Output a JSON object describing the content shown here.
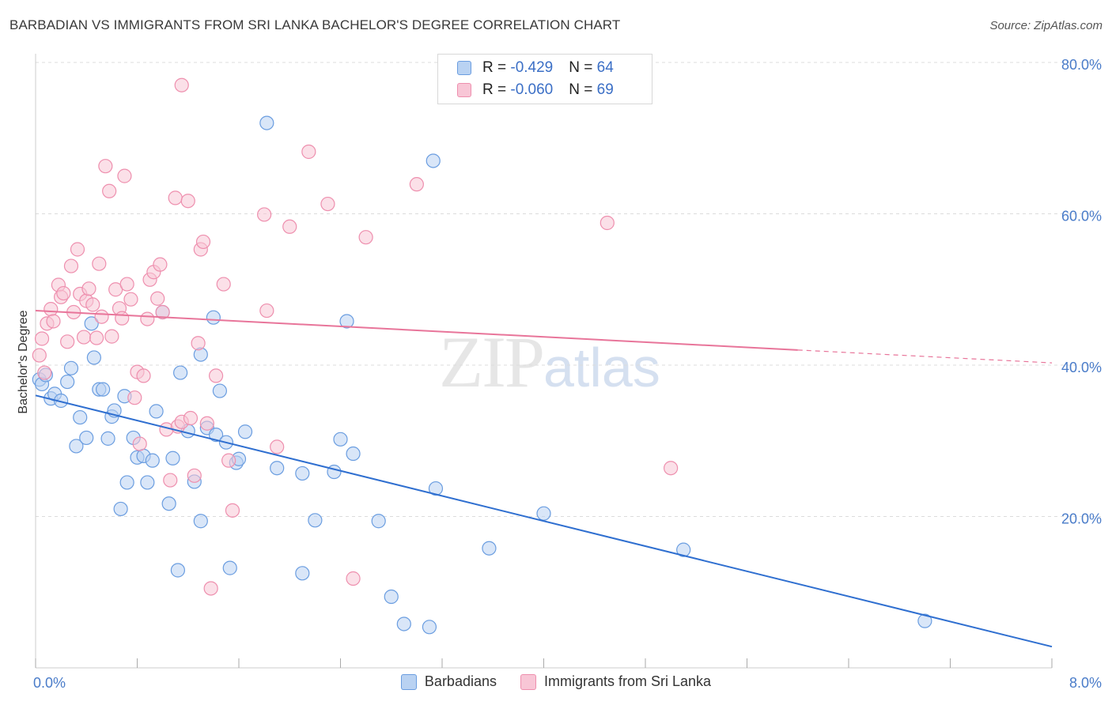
{
  "title": "BARBADIAN VS IMMIGRANTS FROM SRI LANKA BACHELOR'S DEGREE CORRELATION CHART",
  "source": "Source: ZipAtlas.com",
  "watermark": {
    "zip": "ZIP",
    "atlas": "atlas"
  },
  "legend": {
    "rows": [
      {
        "r_label": "R = ",
        "r_value": "-0.429",
        "n_label": "N = ",
        "n_value": "64",
        "color": "#a9c8f0"
      },
      {
        "r_label": "R = ",
        "r_value": "-0.060",
        "n_label": "N = ",
        "n_value": "69",
        "color": "#f6b8cb"
      }
    ]
  },
  "bottom_legend": {
    "barbadians": "Barbadians",
    "sri_lanka": "Immigrants from Sri Lanka"
  },
  "chart_data": {
    "type": "scatter",
    "title": "BARBADIAN VS IMMIGRANTS FROM SRI LANKA BACHELOR'S DEGREE CORRELATION CHART",
    "xlabel": "",
    "ylabel": "Bachelor's Degree",
    "xlim": [
      0,
      8
    ],
    "ylim": [
      0,
      80
    ],
    "x_tick_labels": [
      "0.0%",
      "8.0%"
    ],
    "y_tick_labels": [
      "20.0%",
      "40.0%",
      "60.0%",
      "80.0%"
    ],
    "y_ticks": [
      20,
      40,
      60,
      80
    ],
    "grid": true,
    "legend_position": "top-center",
    "series": [
      {
        "name": "Barbadians",
        "color": "#6a9de0",
        "fill": "#b9d2f2",
        "trend_color": "#2f6fd0",
        "r": -0.429,
        "n": 64,
        "trend": {
          "x": [
            0,
            8
          ],
          "y": [
            36.0,
            2.8
          ]
        },
        "points": [
          [
            0.03,
            38.1
          ],
          [
            0.05,
            37.5
          ],
          [
            0.08,
            38.7
          ],
          [
            0.12,
            35.6
          ],
          [
            0.15,
            36.2
          ],
          [
            0.2,
            35.3
          ],
          [
            0.25,
            37.8
          ],
          [
            0.28,
            39.6
          ],
          [
            0.32,
            29.3
          ],
          [
            0.35,
            33.1
          ],
          [
            0.4,
            30.4
          ],
          [
            0.44,
            45.5
          ],
          [
            0.46,
            41.0
          ],
          [
            0.5,
            36.8
          ],
          [
            0.53,
            36.8
          ],
          [
            0.57,
            30.3
          ],
          [
            0.6,
            33.2
          ],
          [
            0.62,
            34.0
          ],
          [
            0.67,
            21.0
          ],
          [
            0.7,
            35.9
          ],
          [
            0.72,
            24.5
          ],
          [
            0.77,
            30.4
          ],
          [
            0.8,
            27.8
          ],
          [
            0.85,
            28.0
          ],
          [
            0.88,
            24.5
          ],
          [
            0.92,
            27.4
          ],
          [
            0.95,
            33.9
          ],
          [
            1.0,
            47.0
          ],
          [
            1.05,
            21.7
          ],
          [
            1.08,
            27.7
          ],
          [
            1.12,
            12.9
          ],
          [
            1.14,
            39.0
          ],
          [
            1.2,
            31.3
          ],
          [
            1.25,
            24.6
          ],
          [
            1.3,
            19.4
          ],
          [
            1.3,
            41.4
          ],
          [
            1.35,
            31.7
          ],
          [
            1.4,
            46.3
          ],
          [
            1.42,
            30.8
          ],
          [
            1.45,
            36.6
          ],
          [
            1.5,
            29.8
          ],
          [
            1.53,
            13.2
          ],
          [
            1.58,
            27.1
          ],
          [
            1.6,
            27.6
          ],
          [
            1.65,
            31.2
          ],
          [
            1.9,
            26.4
          ],
          [
            2.1,
            25.7
          ],
          [
            2.1,
            12.5
          ],
          [
            2.2,
            19.5
          ],
          [
            2.35,
            25.9
          ],
          [
            2.4,
            30.2
          ],
          [
            2.45,
            45.8
          ],
          [
            2.5,
            28.3
          ],
          [
            2.7,
            19.4
          ],
          [
            2.8,
            9.4
          ],
          [
            2.9,
            5.8
          ],
          [
            3.1,
            5.4
          ],
          [
            3.13,
            67.0
          ],
          [
            3.15,
            23.7
          ],
          [
            3.57,
            15.8
          ],
          [
            4.0,
            20.4
          ],
          [
            5.1,
            15.6
          ],
          [
            7.0,
            6.2
          ],
          [
            1.82,
            72.0
          ]
        ]
      },
      {
        "name": "Immigrants from Sri Lanka",
        "color": "#ee8fae",
        "fill": "#f8c6d6",
        "trend_color": "#e8759a",
        "r": -0.06,
        "n": 69,
        "trend": {
          "x": [
            0,
            6.0
          ],
          "y": [
            47.2,
            42.0
          ]
        },
        "trend_dashed": {
          "x": [
            6.0,
            8.0
          ],
          "y": [
            42.0,
            40.3
          ]
        },
        "points": [
          [
            0.03,
            41.3
          ],
          [
            0.05,
            43.5
          ],
          [
            0.07,
            39.0
          ],
          [
            0.09,
            45.5
          ],
          [
            0.12,
            47.4
          ],
          [
            0.14,
            45.8
          ],
          [
            0.18,
            50.6
          ],
          [
            0.2,
            49.0
          ],
          [
            0.22,
            49.5
          ],
          [
            0.25,
            43.1
          ],
          [
            0.28,
            53.1
          ],
          [
            0.3,
            47.0
          ],
          [
            0.33,
            55.3
          ],
          [
            0.35,
            49.4
          ],
          [
            0.38,
            43.7
          ],
          [
            0.4,
            48.5
          ],
          [
            0.42,
            50.1
          ],
          [
            0.45,
            48.0
          ],
          [
            0.48,
            43.6
          ],
          [
            0.5,
            53.4
          ],
          [
            0.52,
            46.4
          ],
          [
            0.55,
            66.3
          ],
          [
            0.58,
            63.0
          ],
          [
            0.6,
            43.8
          ],
          [
            0.63,
            50.0
          ],
          [
            0.66,
            47.5
          ],
          [
            0.68,
            46.2
          ],
          [
            0.7,
            65.0
          ],
          [
            0.72,
            50.7
          ],
          [
            0.75,
            48.7
          ],
          [
            0.78,
            35.7
          ],
          [
            0.8,
            39.1
          ],
          [
            0.82,
            29.6
          ],
          [
            0.85,
            38.6
          ],
          [
            0.88,
            46.1
          ],
          [
            0.9,
            51.3
          ],
          [
            0.93,
            52.3
          ],
          [
            0.96,
            48.8
          ],
          [
            0.98,
            53.3
          ],
          [
            1.0,
            47.0
          ],
          [
            1.03,
            31.5
          ],
          [
            1.06,
            24.8
          ],
          [
            1.1,
            62.1
          ],
          [
            1.12,
            31.9
          ],
          [
            1.15,
            32.5
          ],
          [
            1.2,
            61.7
          ],
          [
            1.22,
            33.0
          ],
          [
            1.25,
            25.4
          ],
          [
            1.28,
            42.9
          ],
          [
            1.3,
            55.3
          ],
          [
            1.32,
            56.3
          ],
          [
            1.35,
            32.3
          ],
          [
            1.38,
            10.5
          ],
          [
            1.42,
            38.6
          ],
          [
            1.48,
            50.7
          ],
          [
            1.52,
            27.4
          ],
          [
            1.55,
            20.8
          ],
          [
            1.8,
            59.9
          ],
          [
            1.82,
            47.2
          ],
          [
            1.9,
            29.2
          ],
          [
            2.0,
            58.3
          ],
          [
            2.15,
            68.2
          ],
          [
            2.3,
            61.3
          ],
          [
            2.5,
            11.8
          ],
          [
            2.6,
            56.9
          ],
          [
            3.0,
            63.9
          ],
          [
            4.5,
            58.8
          ],
          [
            5.0,
            26.4
          ],
          [
            1.15,
            77.0
          ]
        ]
      }
    ]
  }
}
